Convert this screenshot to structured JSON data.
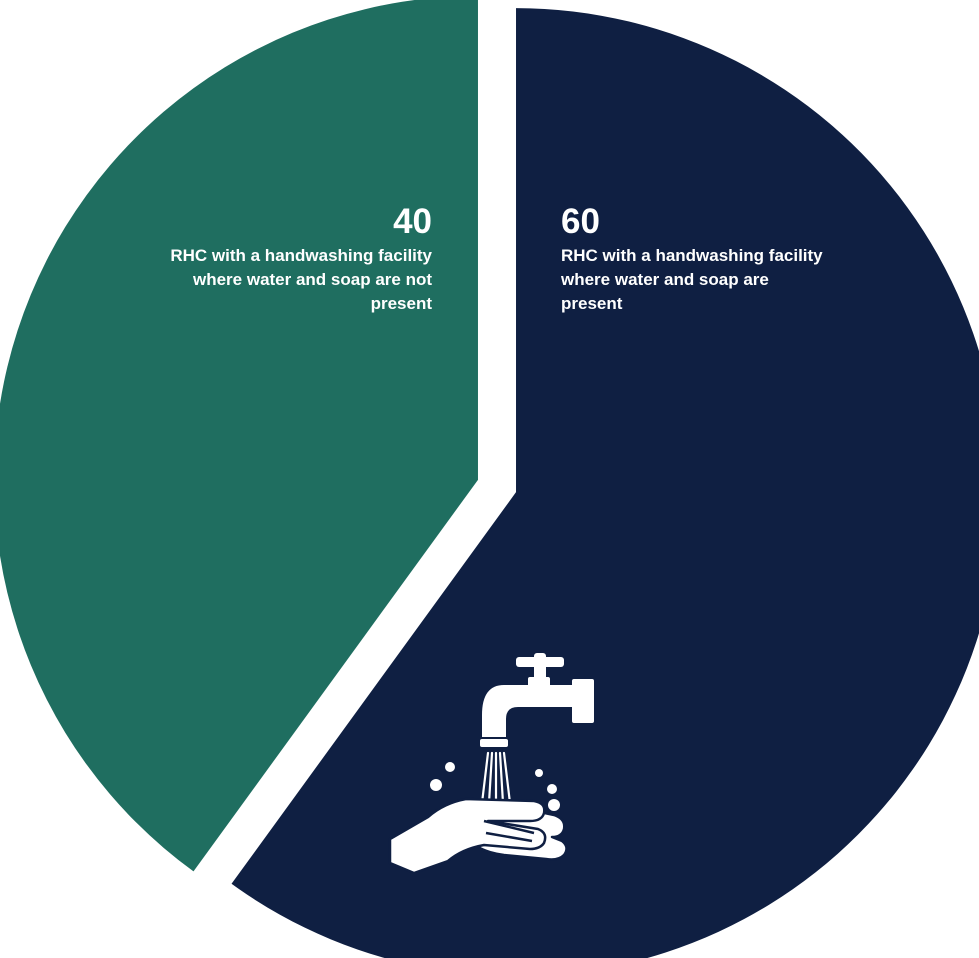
{
  "chart_data": {
    "type": "pie",
    "title": "",
    "series": [
      {
        "values": [
          60,
          40
        ],
        "categories": [
          "RHC with a handwashing facility where water and soap are present",
          "RHC with a handwashing facility where water and soap are not present"
        ]
      }
    ],
    "slices": [
      {
        "value": 60,
        "value_label": "60",
        "label": "RHC with a handwashing facility where water and soap are present",
        "color": "#0f1f42"
      },
      {
        "value": 40,
        "value_label": "40",
        "label": "RHC with a handwashing facility where water and soap are not present",
        "color": "#1f6e60"
      }
    ],
    "legend": "none",
    "start_angle_deg": 0,
    "direction": "clockwise",
    "exploded": true
  },
  "icons": {
    "illustration": "handwashing-icon"
  },
  "colors": {
    "background": "#ffffff",
    "label_text": "#ffffff"
  }
}
